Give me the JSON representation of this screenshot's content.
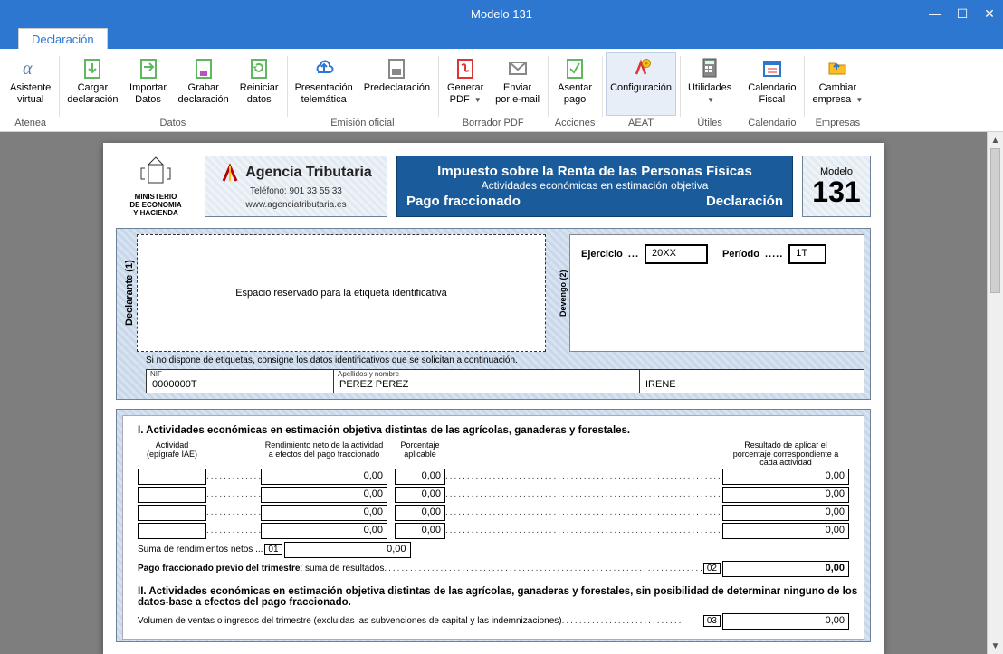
{
  "window": {
    "title": "Modelo 131"
  },
  "ribbon": {
    "tab": "Declaración",
    "groups": [
      {
        "name": "atenea",
        "label": "Atenea",
        "buttons": [
          {
            "id": "asistente",
            "l1": "Asistente",
            "l2": "virtual",
            "icon": "alpha"
          }
        ]
      },
      {
        "name": "datos",
        "label": "Datos",
        "buttons": [
          {
            "id": "cargar",
            "l1": "Cargar",
            "l2": "declaración",
            "icon": "load"
          },
          {
            "id": "importar",
            "l1": "Importar",
            "l2": "Datos",
            "icon": "import"
          },
          {
            "id": "grabar",
            "l1": "Grabar",
            "l2": "declaración",
            "icon": "save"
          },
          {
            "id": "reiniciar",
            "l1": "Reiniciar",
            "l2": "datos",
            "icon": "reset"
          }
        ]
      },
      {
        "name": "emision",
        "label": "Emisión oficial",
        "buttons": [
          {
            "id": "pres-tele",
            "l1": "Presentación",
            "l2": "telemática",
            "icon": "cloud"
          },
          {
            "id": "predecl",
            "l1": "Predeclaración",
            "l2": "",
            "icon": "print"
          }
        ]
      },
      {
        "name": "borrador",
        "label": "Borrador PDF",
        "buttons": [
          {
            "id": "genpdf",
            "l1": "Generar",
            "l2": "PDF",
            "icon": "pdf",
            "caret": true
          },
          {
            "id": "email",
            "l1": "Enviar",
            "l2": "por e-mail",
            "icon": "mail"
          }
        ]
      },
      {
        "name": "acciones",
        "label": "Acciones",
        "buttons": [
          {
            "id": "asentar",
            "l1": "Asentar",
            "l2": "pago",
            "icon": "check"
          }
        ]
      },
      {
        "name": "aeat",
        "label": "AEAT",
        "buttons": [
          {
            "id": "config",
            "l1": "Configuración",
            "l2": "",
            "icon": "gear",
            "active": true
          }
        ]
      },
      {
        "name": "utiles",
        "label": "Útiles",
        "buttons": [
          {
            "id": "utilidades",
            "l1": "Utilidades",
            "l2": "",
            "icon": "calc",
            "caret": true
          }
        ]
      },
      {
        "name": "calendario",
        "label": "Calendario",
        "buttons": [
          {
            "id": "calfiscal",
            "l1": "Calendario",
            "l2": "Fiscal",
            "icon": "cal"
          }
        ]
      },
      {
        "name": "empresas",
        "label": "Empresas",
        "buttons": [
          {
            "id": "cambiar",
            "l1": "Cambiar",
            "l2": "empresa",
            "icon": "folder",
            "caret": true
          }
        ]
      }
    ]
  },
  "form": {
    "ministerio": {
      "l1": "MINISTERIO",
      "l2": "DE ECONOMIA",
      "l3": "Y HACIENDA"
    },
    "agencia": {
      "name": "Agencia Tributaria",
      "tel": "Teléfono: 901 33 55 33",
      "url": "www.agenciatributaria.es"
    },
    "mainTitle": {
      "l1": "Impuesto sobre la Renta de las Personas Físicas",
      "l2": "Actividades económicas en estimación objetiva",
      "l3a": "Pago fraccionado",
      "l3b": "Declaración"
    },
    "modelo": {
      "label": "Modelo",
      "num": "131"
    },
    "declaranteLabel": "Declarante (1)",
    "devengoLabel": "Devengo (2)",
    "etiqueta": "Espacio reservado para la etiqueta identificativa",
    "ejercicio": {
      "label": "Ejercicio",
      "value": "20XX"
    },
    "periodo": {
      "label": "Período",
      "value": "1T"
    },
    "subnote": "Si no dispone de etiquetas, consigne los datos identificativos que se solicitan a continuación.",
    "nif": {
      "label": "NIF",
      "value": "0000000T"
    },
    "apellidos": {
      "label": "Apellidos y nombre",
      "value": "PEREZ PEREZ"
    },
    "nombre": {
      "label": "",
      "value": "IRENE"
    },
    "sec1": {
      "title": "I.  Actividades económicas en estimación objetiva distintas de las agrícolas, ganaderas y forestales.",
      "h1": "Actividad (epígrafe IAE)",
      "h2": "Rendimiento neto de la actividad a efectos del pago fraccionado",
      "h3": "Porcentaje aplicable",
      "h4": "Resultado de aplicar el porcentaje correspondiente a cada actividad",
      "rows": [
        {
          "c2": "0,00",
          "c3": "0,00",
          "c4": "0,00"
        },
        {
          "c2": "0,00",
          "c3": "0,00",
          "c4": "0,00"
        },
        {
          "c2": "0,00",
          "c3": "0,00",
          "c4": "0,00"
        },
        {
          "c2": "0,00",
          "c3": "0,00",
          "c4": "0,00"
        }
      ],
      "sumaLabel": "Suma de rendimientos netos",
      "sumaTag": "01",
      "sumaVal": "0,00",
      "pagoLabel": "Pago fraccionado previo del trimestre",
      "pagoSub": ": suma de resultados",
      "pagoTag": "02",
      "pagoVal": "0,00"
    },
    "sec2": {
      "title": "II.  Actividades económicas en estimación objetiva distintas de las agrícolas, ganaderas y forestales, sin posibilidad de determinar ninguno de los datos-base a efectos del pago fraccionado.",
      "vol": "Volumen de ventas o ingresos del trimestre (excluidas las subvenciones de capital y las indemnizaciones)",
      "volTag": "03",
      "volVal": "0,00"
    }
  },
  "colors": {
    "accent": "#2e77d0",
    "panel": "#d7e3f0",
    "titleBg": "#1a5c9b"
  }
}
